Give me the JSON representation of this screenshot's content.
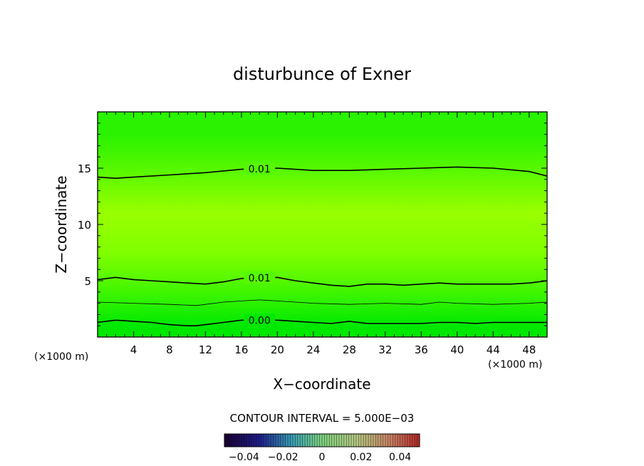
{
  "chart_data": {
    "type": "heatmap",
    "title": "disturbunce of Exner",
    "xlabel": "X−coordinate",
    "ylabel": "Z−coordinate",
    "x_unit_left": "(×1000 m)",
    "x_unit_right": "(×1000 m)",
    "xlim": [
      0,
      50
    ],
    "ylim": [
      0,
      20
    ],
    "x_ticks": [
      4,
      8,
      12,
      16,
      20,
      24,
      28,
      32,
      36,
      40,
      44,
      48
    ],
    "y_ticks": [
      5,
      10,
      15
    ],
    "grid": false,
    "contour_interval_text": "CONTOUR INTERVAL = 5.000E−03",
    "contour_interval": 0.005,
    "colorbar": {
      "min": -0.05,
      "max": 0.05,
      "tick_values": [
        -0.04,
        -0.02,
        0,
        0.02,
        0.04
      ],
      "tick_labels": [
        "−0.04",
        "−0.02",
        "0",
        "0.02",
        "0.04"
      ]
    },
    "colors": {
      "band_lowest": "#00e800",
      "band_low": "#2af200",
      "band_mid_low": "#55f800",
      "band_mid": "#80ff00",
      "band_peak": "#99ff00",
      "contour": "#000000"
    },
    "field_profile": [
      {
        "z": 0.0,
        "value": -0.001
      },
      {
        "z": 1.0,
        "value": 0.0
      },
      {
        "z": 3.0,
        "value": 0.005
      },
      {
        "z": 5.0,
        "value": 0.01
      },
      {
        "z": 7.5,
        "value": 0.014
      },
      {
        "z": 11.0,
        "value": 0.016
      },
      {
        "z": 15.0,
        "value": 0.01
      },
      {
        "z": 18.0,
        "value": 0.006
      },
      {
        "z": 20.0,
        "value": 0.005
      }
    ],
    "contours": [
      {
        "label": "0.00",
        "value": 0.0,
        "label_x": 18,
        "points": [
          [
            0,
            1.3
          ],
          [
            2,
            1.5
          ],
          [
            4,
            1.4
          ],
          [
            6,
            1.3
          ],
          [
            8,
            1.1
          ],
          [
            10,
            1.0
          ],
          [
            11,
            1.0
          ],
          [
            12,
            1.1
          ],
          [
            14,
            1.3
          ],
          [
            16,
            1.5
          ],
          [
            20,
            1.5
          ],
          [
            22,
            1.4
          ],
          [
            24,
            1.3
          ],
          [
            26,
            1.2
          ],
          [
            28,
            1.4
          ],
          [
            29,
            1.3
          ],
          [
            30,
            1.2
          ],
          [
            32,
            1.2
          ],
          [
            34,
            1.2
          ],
          [
            36,
            1.2
          ],
          [
            38,
            1.3
          ],
          [
            40,
            1.3
          ],
          [
            42,
            1.2
          ],
          [
            44,
            1.3
          ],
          [
            46,
            1.3
          ],
          [
            48,
            1.3
          ],
          [
            50,
            1.3
          ]
        ]
      },
      {
        "label": "",
        "value": 0.005,
        "label_x": null,
        "points": [
          [
            0,
            3.1
          ],
          [
            4,
            3.0
          ],
          [
            8,
            2.9
          ],
          [
            11,
            2.8
          ],
          [
            14,
            3.1
          ],
          [
            16,
            3.2
          ],
          [
            18,
            3.3
          ],
          [
            20,
            3.2
          ],
          [
            24,
            3.0
          ],
          [
            28,
            2.9
          ],
          [
            32,
            3.0
          ],
          [
            36,
            2.9
          ],
          [
            38,
            3.1
          ],
          [
            40,
            3.0
          ],
          [
            44,
            2.9
          ],
          [
            48,
            3.0
          ],
          [
            50,
            3.1
          ]
        ]
      },
      {
        "label": "0.01",
        "value": 0.01,
        "label_x": 18,
        "points": [
          [
            0,
            5.1
          ],
          [
            2,
            5.3
          ],
          [
            4,
            5.1
          ],
          [
            6,
            5.0
          ],
          [
            8,
            4.9
          ],
          [
            10,
            4.8
          ],
          [
            12,
            4.7
          ],
          [
            14,
            4.9
          ],
          [
            16,
            5.2
          ],
          [
            20,
            5.3
          ],
          [
            22,
            5.0
          ],
          [
            24,
            4.8
          ],
          [
            26,
            4.6
          ],
          [
            28,
            4.5
          ],
          [
            30,
            4.7
          ],
          [
            32,
            4.7
          ],
          [
            34,
            4.6
          ],
          [
            36,
            4.7
          ],
          [
            38,
            4.8
          ],
          [
            40,
            4.7
          ],
          [
            44,
            4.7
          ],
          [
            46,
            4.7
          ],
          [
            48,
            4.8
          ],
          [
            50,
            5.0
          ]
        ]
      },
      {
        "label": "0.01",
        "value": 0.01,
        "label_x": 18,
        "points": [
          [
            0,
            14.2
          ],
          [
            2,
            14.1
          ],
          [
            4,
            14.2
          ],
          [
            8,
            14.4
          ],
          [
            12,
            14.6
          ],
          [
            16,
            14.9
          ],
          [
            20,
            15.0
          ],
          [
            24,
            14.8
          ],
          [
            28,
            14.8
          ],
          [
            32,
            14.9
          ],
          [
            36,
            15.0
          ],
          [
            40,
            15.1
          ],
          [
            44,
            15.0
          ],
          [
            48,
            14.7
          ],
          [
            50,
            14.3
          ]
        ]
      }
    ]
  }
}
